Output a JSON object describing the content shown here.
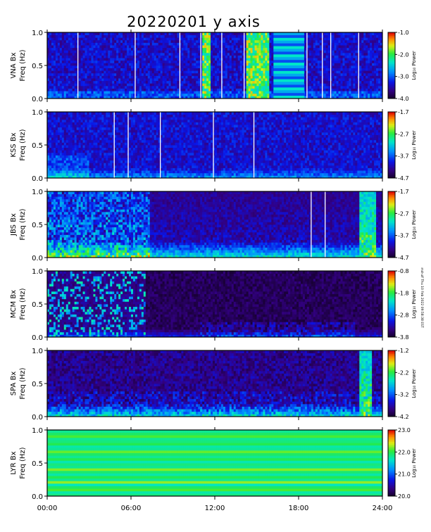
{
  "chart_data": {
    "type": "heatmap",
    "title": "20220201  y axis",
    "xlabel": "",
    "x_ticks": [
      "00:00",
      "06:00",
      "12:00",
      "18:00",
      "24:00"
    ],
    "xlim": [
      0,
      24
    ],
    "ylim": [
      0,
      1.0
    ],
    "y_ticks": [
      "0.0",
      "0.5",
      "1.0"
    ],
    "footnote": "md-ulf Thu 10 Feb 2022 09:58:38 EST",
    "colorbar_label": "Log₁₀ Power",
    "panels": [
      {
        "station": "VNA",
        "ylabel_line1": "VNA Bx",
        "ylabel_line2": "Freq (Hz)",
        "cbar_ticks": [
          "-1.0",
          "-2.0",
          "-3.0",
          "-4.0"
        ],
        "cbar_range": [
          -4.0,
          -1.0
        ],
        "style": "vna",
        "gaps_h": [
          2.2,
          6.3,
          9.5,
          11.0,
          12.5,
          14.1,
          18.6,
          19.7,
          20.3,
          22.3
        ],
        "events": [
          {
            "start": 11.1,
            "end": 11.7,
            "kind": "broadband"
          },
          {
            "start": 14.3,
            "end": 15.9,
            "kind": "broadband"
          },
          {
            "start": 16.2,
            "end": 18.4,
            "kind": "bands"
          }
        ]
      },
      {
        "station": "KSS",
        "ylabel_line1": "KSS Bx",
        "ylabel_line2": "Freq (Hz)",
        "cbar_ticks": [
          "-1.7",
          "-2.7",
          "-3.7",
          "-4.7"
        ],
        "cbar_range": [
          -4.7,
          -1.7
        ],
        "style": "kss",
        "gaps_h": [
          4.8,
          5.8,
          8.1,
          11.9,
          14.8
        ],
        "events": []
      },
      {
        "station": "JBS",
        "ylabel_line1": "JBS Bx",
        "ylabel_line2": "Freq (Hz)",
        "cbar_ticks": [
          "-1.7",
          "-2.7",
          "-3.7",
          "-4.7"
        ],
        "cbar_range": [
          -4.7,
          -1.7
        ],
        "style": "jbs",
        "gaps_h": [
          18.9,
          19.9
        ],
        "events": [
          {
            "start": 0.0,
            "end": 7.3,
            "kind": "active"
          },
          {
            "start": 22.3,
            "end": 23.6,
            "kind": "burst"
          }
        ]
      },
      {
        "station": "MCM",
        "ylabel_line1": "MCM Bx",
        "ylabel_line2": "Freq (Hz)",
        "cbar_ticks": [
          "-0.8",
          "-1.8",
          "-2.8",
          "-3.8"
        ],
        "cbar_range": [
          -3.8,
          -0.8
        ],
        "style": "mcm",
        "gaps_h": [],
        "events": [
          {
            "start": 0.0,
            "end": 7.0,
            "kind": "streaks"
          }
        ]
      },
      {
        "station": "SPA",
        "ylabel_line1": "SPA Bx",
        "ylabel_line2": "Freq (Hz)",
        "cbar_ticks": [
          "-1.2",
          "-2.2",
          "-3.2",
          "-4.2"
        ],
        "cbar_range": [
          -4.2,
          -1.2
        ],
        "style": "spa",
        "gaps_h": [],
        "events": [
          {
            "start": 22.3,
            "end": 23.3,
            "kind": "burst"
          }
        ]
      },
      {
        "station": "LYR",
        "ylabel_line1": "LYR Bx",
        "ylabel_line2": "Freq (Hz)",
        "cbar_ticks": [
          "23.0",
          "22.0",
          "21.0",
          "20.0"
        ],
        "cbar_range": [
          20.0,
          23.0
        ],
        "style": "lyr",
        "gaps_h": [],
        "events": []
      }
    ]
  }
}
